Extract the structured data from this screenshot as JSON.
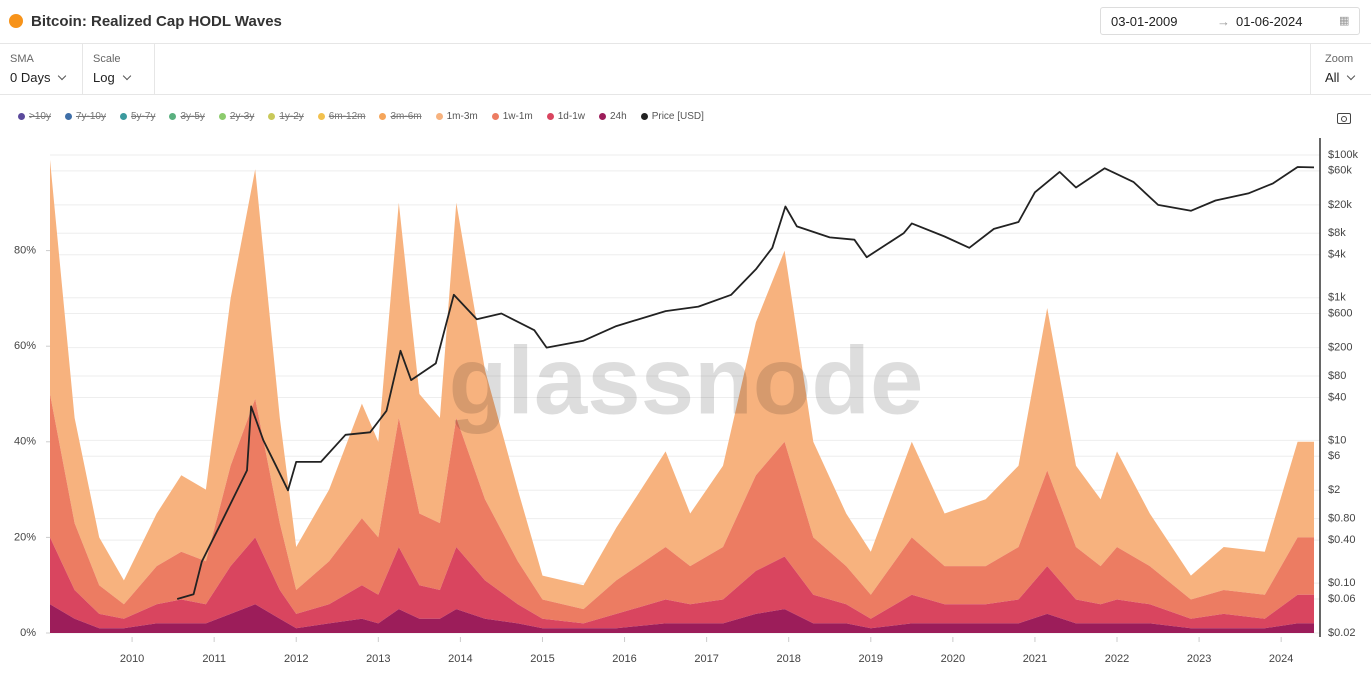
{
  "header": {
    "title": "Bitcoin: Realized Cap HODL Waves",
    "date_from": "03-01-2009",
    "date_to": "01-06-2024"
  },
  "controls": [
    {
      "label": "SMA",
      "value": "0 Days"
    },
    {
      "label": "Scale",
      "value": "Log"
    },
    {
      "label": "Zoom",
      "value": "All"
    }
  ],
  "chart_data": {
    "type": "area",
    "stacked": true,
    "watermark": "glassnode",
    "grid": true,
    "x": [
      2009.0,
      2009.3,
      2009.6,
      2009.9,
      2010.3,
      2010.6,
      2010.9,
      2011.2,
      2011.5,
      2011.8,
      2012.0,
      2012.4,
      2012.8,
      2013.0,
      2013.25,
      2013.5,
      2013.75,
      2013.95,
      2014.3,
      2014.7,
      2015.0,
      2015.5,
      2015.9,
      2016.5,
      2016.8,
      2017.2,
      2017.6,
      2017.95,
      2018.3,
      2018.7,
      2019.0,
      2019.5,
      2019.9,
      2020.4,
      2020.8,
      2021.15,
      2021.5,
      2021.8,
      2022.0,
      2022.4,
      2022.9,
      2023.3,
      2023.8,
      2024.2,
      2024.4
    ],
    "xlim": [
      2009.0,
      2024.4
    ],
    "xticks": [
      2010,
      2011,
      2012,
      2013,
      2014,
      2015,
      2016,
      2017,
      2018,
      2019,
      2020,
      2021,
      2022,
      2023,
      2024
    ],
    "ylim": [
      0,
      100
    ],
    "yticks": [
      {
        "value": 0,
        "label": "0%"
      },
      {
        "value": 20,
        "label": "20%"
      },
      {
        "value": 40,
        "label": "40%"
      },
      {
        "value": 60,
        "label": "60%"
      },
      {
        "value": 80,
        "label": "80%"
      }
    ],
    "y2lim": [
      0.02,
      100000
    ],
    "y2scale": "log",
    "y2ticks": [
      {
        "value": 0.02,
        "label": "$0.02"
      },
      {
        "value": 0.06,
        "label": "$0.06"
      },
      {
        "value": 0.1,
        "label": "$0.10"
      },
      {
        "value": 0.4,
        "label": "$0.40"
      },
      {
        "value": 0.8,
        "label": "$0.80"
      },
      {
        "value": 2,
        "label": "$2"
      },
      {
        "value": 6,
        "label": "$6"
      },
      {
        "value": 10,
        "label": "$10"
      },
      {
        "value": 40,
        "label": "$40"
      },
      {
        "value": 80,
        "label": "$80"
      },
      {
        "value": 200,
        "label": "$200"
      },
      {
        "value": 600,
        "label": "$600"
      },
      {
        "value": 1000,
        "label": "$1k"
      },
      {
        "value": 4000,
        "label": "$4k"
      },
      {
        "value": 8000,
        "label": "$8k"
      },
      {
        "value": 20000,
        "label": "$20k"
      },
      {
        "value": 60000,
        "label": "$60k"
      },
      {
        "value": 100000,
        "label": "$100k"
      }
    ],
    "hidden_legend": [
      {
        "name": ">10y",
        "color": "#5b4a9c"
      },
      {
        "name": "7y-10y",
        "color": "#3f6fa8"
      },
      {
        "name": "5y-7y",
        "color": "#3b9a9e"
      },
      {
        "name": "3y-5y",
        "color": "#5ab07f"
      },
      {
        "name": "2y-3y",
        "color": "#8ccb6d"
      },
      {
        "name": "1y-2y",
        "color": "#c9c95a"
      },
      {
        "name": "6m-12m",
        "color": "#f2c14e"
      },
      {
        "name": "3m-6m",
        "color": "#f5a55a"
      }
    ],
    "series": [
      {
        "name": "1m-3m",
        "color": "#f7b27e",
        "values": [
          49,
          22,
          10,
          5,
          11,
          16,
          15,
          35,
          48,
          22,
          9,
          15,
          24,
          20,
          45,
          25,
          22,
          45,
          27,
          15,
          5,
          5,
          11,
          20,
          11,
          17,
          32,
          40,
          20,
          11,
          9,
          20,
          11,
          14,
          17,
          34,
          17,
          14,
          20,
          11,
          5,
          9,
          9,
          20,
          20
        ]
      },
      {
        "name": "1w-1m",
        "color": "#ec7c62",
        "values": [
          30,
          14,
          6,
          3,
          8,
          10,
          9,
          21,
          29,
          14,
          5,
          9,
          14,
          12,
          27,
          15,
          14,
          27,
          17,
          9,
          4,
          3,
          7,
          11,
          8,
          11,
          20,
          24,
          12,
          8,
          5,
          12,
          8,
          8,
          11,
          20,
          11,
          8,
          11,
          8,
          4,
          5,
          5,
          12,
          12
        ]
      },
      {
        "name": "1d-1w",
        "color": "#d9455f",
        "values": [
          14,
          6,
          3,
          2,
          4,
          5,
          4,
          10,
          14,
          6,
          3,
          4,
          7,
          6,
          13,
          7,
          6,
          13,
          8,
          4,
          2,
          1,
          3,
          5,
          4,
          5,
          9,
          11,
          6,
          4,
          2,
          6,
          4,
          4,
          5,
          10,
          5,
          4,
          5,
          4,
          2,
          3,
          2,
          6,
          6
        ]
      },
      {
        "name": "24h",
        "color": "#9c1d5a",
        "values": [
          6,
          3,
          1,
          1,
          2,
          2,
          2,
          4,
          6,
          3,
          1,
          2,
          3,
          2,
          5,
          3,
          3,
          5,
          3,
          2,
          1,
          1,
          1,
          2,
          2,
          2,
          4,
          5,
          2,
          2,
          1,
          2,
          2,
          2,
          2,
          4,
          2,
          2,
          2,
          2,
          1,
          1,
          1,
          2,
          2
        ]
      },
      {
        "name": "Price [USD]",
        "color": "#222222",
        "type": "line",
        "axis": "y2",
        "x": [
          2010.55,
          2010.75,
          2010.85,
          2011.1,
          2011.4,
          2011.45,
          2011.6,
          2011.75,
          2011.9,
          2012.0,
          2012.3,
          2012.6,
          2012.9,
          2013.1,
          2013.27,
          2013.4,
          2013.7,
          2013.92,
          2014.2,
          2014.5,
          2014.9,
          2015.05,
          2015.5,
          2015.9,
          2016.5,
          2016.9,
          2017.3,
          2017.6,
          2017.8,
          2017.96,
          2018.1,
          2018.5,
          2018.8,
          2018.95,
          2019.4,
          2019.5,
          2019.9,
          2020.2,
          2020.5,
          2020.8,
          2021.0,
          2021.3,
          2021.5,
          2021.85,
          2022.2,
          2022.5,
          2022.9,
          2023.2,
          2023.6,
          2023.9,
          2024.2,
          2024.4
        ],
        "values": [
          0.06,
          0.07,
          0.2,
          0.76,
          3.8,
          30,
          10,
          4.5,
          2,
          5,
          5,
          12,
          13,
          26,
          180,
          70,
          120,
          1100,
          500,
          600,
          350,
          200,
          250,
          400,
          650,
          750,
          1100,
          2500,
          5000,
          19000,
          10000,
          7000,
          6500,
          3700,
          8000,
          11000,
          7200,
          5000,
          9200,
          11500,
          30000,
          58000,
          35000,
          65000,
          42000,
          20000,
          16500,
          23000,
          29000,
          40000,
          68000,
          67000
        ]
      }
    ]
  }
}
